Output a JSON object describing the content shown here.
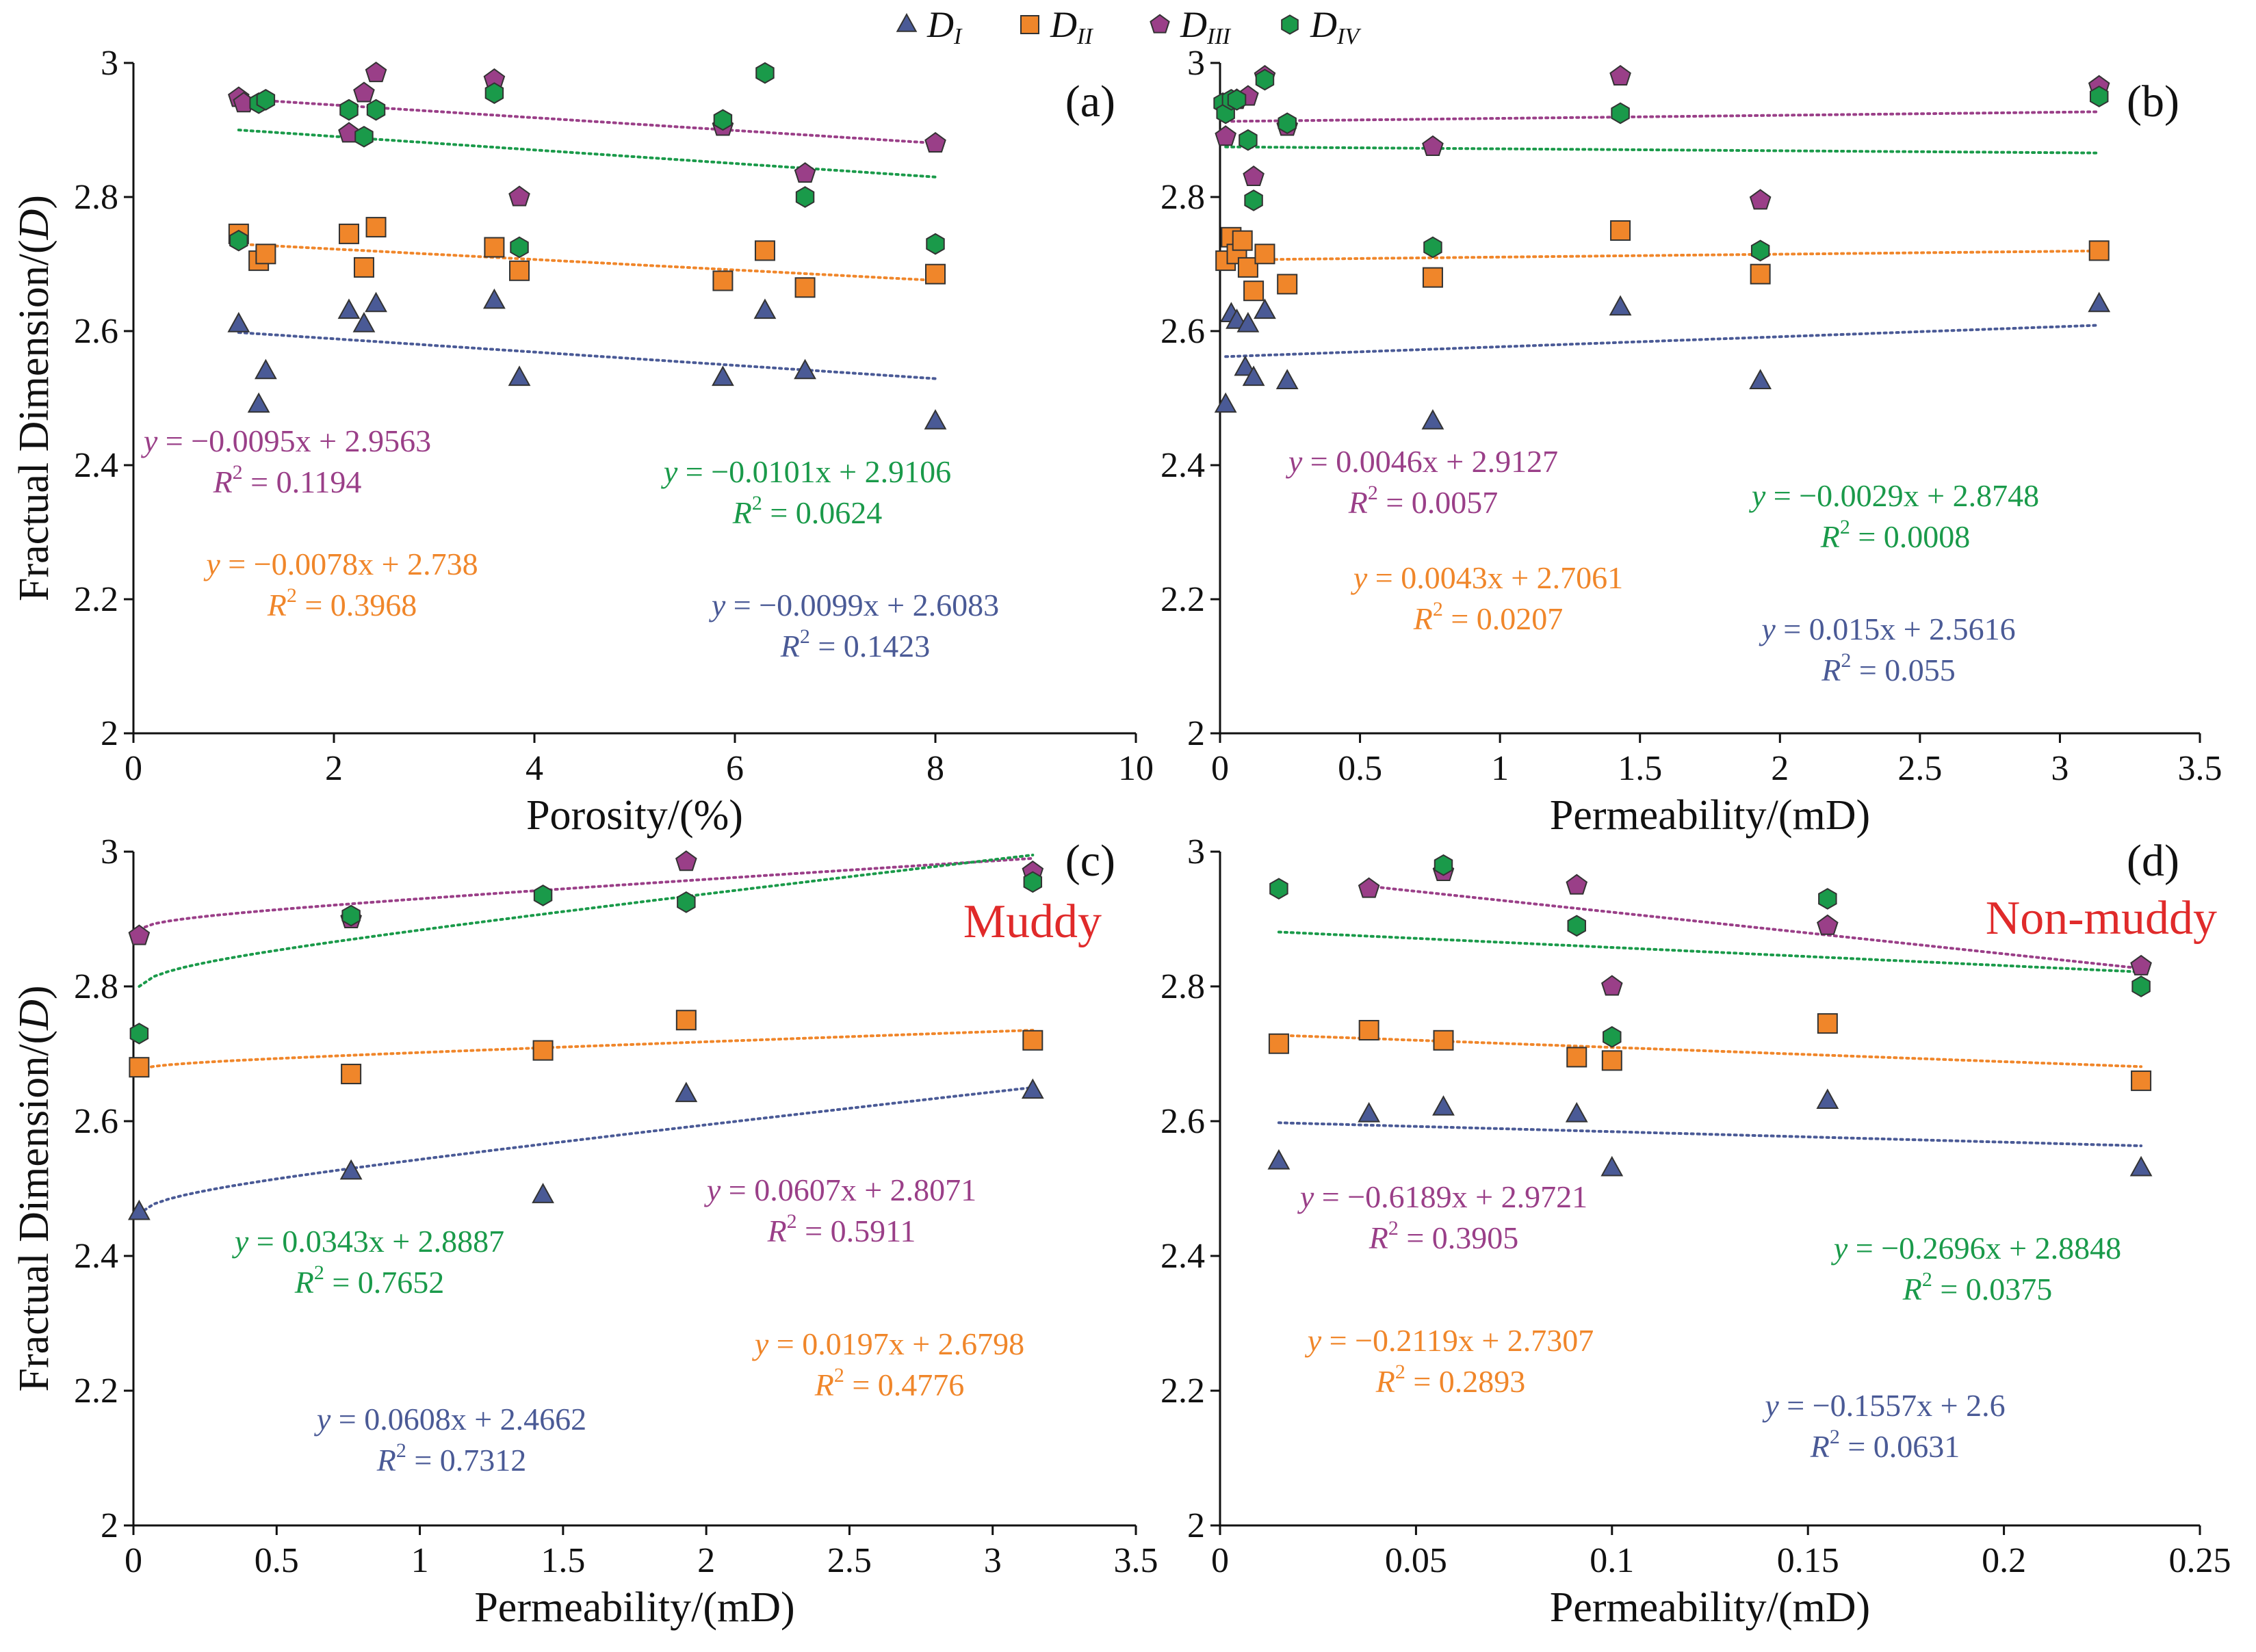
{
  "series_meta": [
    {
      "key": "D1",
      "label": "D",
      "sub": "I",
      "marker": "triangle",
      "color": "#4a5a96"
    },
    {
      "key": "D2",
      "label": "D",
      "sub": "II",
      "marker": "square",
      "color": "#f0862a"
    },
    {
      "key": "D3",
      "label": "D",
      "sub": "III",
      "marker": "pentagon",
      "color": "#9a3f88"
    },
    {
      "key": "D4",
      "label": "D",
      "sub": "IV",
      "marker": "hexagon",
      "color": "#1a9a4a"
    }
  ],
  "y_axis_title": "Fractual Dimension/(",
  "y_axis_title_var": "D",
  "y_axis_title_end": ")",
  "chart_data": [
    {
      "type": "scatter",
      "label": "(a)",
      "title": "",
      "xlabel": "Porosity/(%)",
      "ylabel": "Fractual Dimension/(D)",
      "xlim": [
        0,
        10
      ],
      "ylim": [
        2,
        3
      ],
      "xticks": [
        0,
        2,
        4,
        6,
        8,
        10
      ],
      "xtick_labels": [
        "0",
        "2",
        "4",
        "6",
        "8",
        "10"
      ],
      "yticks": [
        2,
        2.2,
        2.4,
        2.6,
        2.8,
        3
      ],
      "ytick_labels": [
        "2",
        "2.2",
        "2.4",
        "2.6",
        "2.8",
        "3"
      ],
      "tag": "",
      "series": [
        {
          "key": "D1",
          "x": [
            1.05,
            1.25,
            1.32,
            2.15,
            2.3,
            2.42,
            3.6,
            3.85,
            5.88,
            6.3,
            6.7,
            8.0
          ],
          "y": [
            2.61,
            2.49,
            2.54,
            2.63,
            2.61,
            2.64,
            2.645,
            2.53,
            2.53,
            2.63,
            2.54,
            2.465
          ],
          "fit": {
            "type": "linear",
            "m": -0.0099,
            "b": 2.6083,
            "x0": 1.05,
            "x1": 8.0
          },
          "equation": "y = −0.0099x + 2.6083",
          "r2": "= 0.1423"
        },
        {
          "key": "D2",
          "x": [
            1.05,
            1.25,
            1.32,
            2.15,
            2.3,
            2.42,
            3.6,
            3.85,
            5.88,
            6.3,
            6.7,
            8.0
          ],
          "y": [
            2.745,
            2.705,
            2.715,
            2.745,
            2.695,
            2.755,
            2.725,
            2.69,
            2.675,
            2.72,
            2.665,
            2.685
          ],
          "fit": {
            "type": "linear",
            "m": -0.0078,
            "b": 2.738,
            "x0": 1.05,
            "x1": 8.0
          },
          "equation": "y = −0.0078x + 2.738",
          "r2": "= 0.3968"
        },
        {
          "key": "D3",
          "x": [
            1.05,
            1.1,
            2.15,
            2.3,
            2.42,
            3.6,
            3.85,
            5.88,
            6.7,
            8.0
          ],
          "y": [
            2.948,
            2.94,
            2.895,
            2.955,
            2.985,
            2.975,
            2.8,
            2.905,
            2.835,
            2.88
          ],
          "fit": {
            "type": "linear",
            "m": -0.0095,
            "b": 2.9563,
            "x0": 1.05,
            "x1": 8.0
          },
          "equation": "y = −0.0095x + 2.9563",
          "r2": "= 0.1194"
        },
        {
          "key": "D4",
          "x": [
            1.05,
            1.25,
            1.32,
            2.15,
            2.3,
            2.42,
            3.6,
            3.85,
            5.88,
            6.3,
            6.7,
            8.0
          ],
          "y": [
            2.735,
            2.94,
            2.945,
            2.93,
            2.89,
            2.93,
            2.955,
            2.725,
            2.915,
            2.985,
            2.8,
            2.73
          ],
          "fit": {
            "type": "linear",
            "m": -0.0101,
            "b": 2.9106,
            "x0": 1.05,
            "x1": 8.0
          },
          "equation": "y = −0.0101x + 2.9106",
          "r2": "= 0.0624"
        }
      ]
    },
    {
      "type": "scatter",
      "label": "(b)",
      "title": "",
      "xlabel": "Permeability/(mD)",
      "ylabel": "Fractual Dimension/(D)",
      "xlim": [
        0,
        3.5
      ],
      "ylim": [
        2,
        3
      ],
      "xticks": [
        0,
        0.5,
        1,
        1.5,
        2,
        2.5,
        3,
        3.5
      ],
      "xtick_labels": [
        "0",
        "0.5",
        "1",
        "1.5",
        "2",
        "2.5",
        "3",
        "3.5"
      ],
      "yticks": [
        2,
        2.2,
        2.4,
        2.6,
        2.8,
        3
      ],
      "ytick_labels": [
        "2",
        "2.2",
        "2.4",
        "2.6",
        "2.8",
        "3"
      ],
      "tag": "",
      "series": [
        {
          "key": "D1",
          "x": [
            0.02,
            0.04,
            0.06,
            0.09,
            0.1,
            0.12,
            0.16,
            0.24,
            0.76,
            1.43,
            1.93,
            3.14
          ],
          "y": [
            2.49,
            2.625,
            2.615,
            2.545,
            2.61,
            2.53,
            2.63,
            2.525,
            2.465,
            2.635,
            2.525,
            2.64
          ],
          "fit": {
            "type": "linear",
            "m": 0.015,
            "b": 2.5616,
            "x0": 0.02,
            "x1": 3.14
          },
          "equation": "y = 0.015x + 2.5616",
          "r2": "= 0.055"
        },
        {
          "key": "D2",
          "x": [
            0.02,
            0.04,
            0.06,
            0.08,
            0.1,
            0.12,
            0.16,
            0.24,
            0.76,
            1.43,
            1.93,
            3.14
          ],
          "y": [
            2.705,
            2.74,
            2.715,
            2.735,
            2.695,
            2.66,
            2.715,
            2.67,
            2.68,
            2.75,
            2.685,
            2.72
          ],
          "fit": {
            "type": "linear",
            "m": 0.0043,
            "b": 2.7061,
            "x0": 0.02,
            "x1": 3.14
          },
          "equation": "y = 0.0043x + 2.7061",
          "r2": "= 0.0207"
        },
        {
          "key": "D3",
          "x": [
            0.02,
            0.06,
            0.1,
            0.12,
            0.16,
            0.24,
            0.76,
            1.43,
            1.93,
            3.14
          ],
          "y": [
            2.89,
            2.945,
            2.95,
            2.83,
            2.98,
            2.905,
            2.875,
            2.98,
            2.795,
            2.965
          ],
          "fit": {
            "type": "linear",
            "m": 0.0046,
            "b": 2.9127,
            "x0": 0.02,
            "x1": 3.14
          },
          "equation": "y = 0.0046x + 2.9127",
          "r2": "= 0.0057"
        },
        {
          "key": "D4",
          "x": [
            0.01,
            0.02,
            0.04,
            0.06,
            0.1,
            0.12,
            0.16,
            0.24,
            0.76,
            1.43,
            1.93,
            3.14
          ],
          "y": [
            2.94,
            2.925,
            2.945,
            2.945,
            2.885,
            2.795,
            2.975,
            2.91,
            2.725,
            2.925,
            2.72,
            2.95
          ],
          "fit": {
            "type": "linear",
            "m": -0.0029,
            "b": 2.8748,
            "x0": 0.02,
            "x1": 3.14
          },
          "equation": "y = −0.0029x + 2.8748",
          "r2": "= 0.0008"
        }
      ]
    },
    {
      "type": "scatter",
      "label": "(c)",
      "title": "",
      "xlabel": "Permeability/(mD)",
      "ylabel": "Fractual Dimension/(D)",
      "xlim": [
        0,
        3.5
      ],
      "ylim": [
        2,
        3
      ],
      "xticks": [
        0,
        0.5,
        1,
        1.5,
        2,
        2.5,
        3,
        3.5
      ],
      "xtick_labels": [
        "0",
        "0.5",
        "1",
        "1.5",
        "2",
        "2.5",
        "3",
        "3.5"
      ],
      "yticks": [
        2,
        2.2,
        2.4,
        2.6,
        2.8,
        3
      ],
      "ytick_labels": [
        "2",
        "2.2",
        "2.4",
        "2.6",
        "2.8",
        "3"
      ],
      "tag": "Muddy",
      "series": [
        {
          "key": "D1",
          "x": [
            0.02,
            0.76,
            1.43,
            1.93,
            3.14
          ],
          "y": [
            2.465,
            2.525,
            2.49,
            2.64,
            2.645
          ],
          "fit": {
            "type": "log",
            "a": 0.0608,
            "b": 2.4662,
            "x0": 0.02,
            "x1": 3.14
          },
          "equation": "y = 0.0608x + 2.4662",
          "r2": "= 0.7312"
        },
        {
          "key": "D2",
          "x": [
            0.02,
            0.76,
            1.43,
            1.93,
            3.14
          ],
          "y": [
            2.68,
            2.67,
            2.705,
            2.75,
            2.72
          ],
          "fit": {
            "type": "log",
            "a": 0.0197,
            "b": 2.6798,
            "x0": 0.02,
            "x1": 3.14
          },
          "equation": "y = 0.0197x + 2.6798",
          "r2": "= 0.4776"
        },
        {
          "key": "D3",
          "x": [
            0.02,
            0.76,
            1.93,
            3.14
          ],
          "y": [
            2.875,
            2.9,
            2.985,
            2.97
          ],
          "fit": {
            "type": "log",
            "a": 0.0607,
            "b": 2.8071,
            "x0": 0.02,
            "x1": 3.14
          },
          "equation": "y = 0.0607x + 2.8071",
          "r2": "= 0.5911"
        },
        {
          "key": "D4",
          "x": [
            0.02,
            0.76,
            1.43,
            1.93,
            3.14
          ],
          "y": [
            2.73,
            2.905,
            2.935,
            2.925,
            2.955
          ],
          "fit": {
            "type": "log",
            "a": 0.0343,
            "b": 2.8887,
            "x0": 0.02,
            "x1": 3.14
          },
          "equation": "y = 0.0343x + 2.8887",
          "r2": "= 0.7652"
        }
      ]
    },
    {
      "type": "scatter",
      "label": "(d)",
      "title": "",
      "xlabel": "Permeability/(mD)",
      "ylabel": "Fractual Dimension/(D)",
      "xlim": [
        0,
        0.25
      ],
      "ylim": [
        2,
        3
      ],
      "xticks": [
        0,
        0.05,
        0.1,
        0.15,
        0.2,
        0.25
      ],
      "xtick_labels": [
        "0",
        "0.05",
        "0.1",
        "0.15",
        "0.2",
        "0.25"
      ],
      "yticks": [
        2,
        2.2,
        2.4,
        2.6,
        2.8,
        3
      ],
      "ytick_labels": [
        "2",
        "2.2",
        "2.4",
        "2.6",
        "2.8",
        "3"
      ],
      "tag": "Non-muddy",
      "series": [
        {
          "key": "D1",
          "x": [
            0.015,
            0.038,
            0.057,
            0.091,
            0.1,
            0.155,
            0.235
          ],
          "y": [
            2.54,
            2.61,
            2.62,
            2.61,
            2.53,
            2.63,
            2.53
          ],
          "fit": {
            "type": "linear",
            "m": -0.1557,
            "b": 2.6,
            "x0": 0.015,
            "x1": 0.235
          },
          "equation": "y = −0.1557x + 2.6",
          "r2": "= 0.0631"
        },
        {
          "key": "D2",
          "x": [
            0.015,
            0.038,
            0.057,
            0.091,
            0.1,
            0.155,
            0.235
          ],
          "y": [
            2.715,
            2.735,
            2.72,
            2.695,
            2.69,
            2.745,
            2.66
          ],
          "fit": {
            "type": "linear",
            "m": -0.2119,
            "b": 2.7307,
            "x0": 0.015,
            "x1": 0.235
          },
          "equation": "y = −0.2119x + 2.7307",
          "r2": "= 0.2893"
        },
        {
          "key": "D3",
          "x": [
            0.038,
            0.057,
            0.091,
            0.1,
            0.155,
            0.235
          ],
          "y": [
            2.945,
            2.97,
            2.95,
            2.8,
            2.89,
            2.83
          ],
          "fit": {
            "type": "linear",
            "m": -0.6189,
            "b": 2.9721,
            "x0": 0.038,
            "x1": 0.235
          },
          "equation": "y = −0.6189x + 2.9721",
          "r2": "= 0.3905"
        },
        {
          "key": "D4",
          "x": [
            0.015,
            0.057,
            0.091,
            0.1,
            0.155,
            0.235
          ],
          "y": [
            2.945,
            2.98,
            2.89,
            2.725,
            2.93,
            2.8
          ],
          "fit": {
            "type": "linear",
            "m": -0.2696,
            "b": 2.8848,
            "x0": 0.015,
            "x1": 0.235
          },
          "equation": "y = −0.2696x + 2.8848",
          "r2": "= 0.0375"
        }
      ]
    }
  ]
}
